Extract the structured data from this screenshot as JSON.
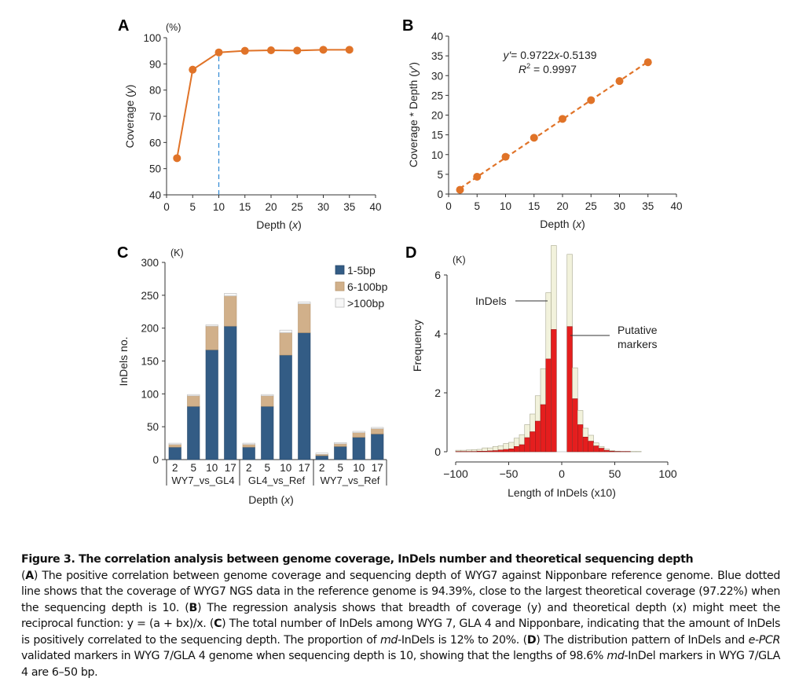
{
  "figure": {
    "caption_title": "Figure 3.  The correlation analysis between genome coverage, InDels number and theoretical sequencing depth",
    "caption_segments": [
      {
        "t": "(",
        "b": false,
        "i": false
      },
      {
        "t": "A",
        "b": true,
        "i": false
      },
      {
        "t": ") The positive correlation between genome coverage and sequencing depth of WYG7 against Nipponbare reference genome. Blue dotted line shows that the coverage of WYG7 NGS data in the reference genome is 94.39%, close to the largest theoretical coverage (97.22%) when the sequencing depth is 10. (",
        "b": false,
        "i": false
      },
      {
        "t": "B",
        "b": true,
        "i": false
      },
      {
        "t": ") The regression analysis shows that breadth of coverage (y) and theoretical depth (x) might meet the reciprocal function: y = (a + bx)/x. (",
        "b": false,
        "i": false
      },
      {
        "t": "C",
        "b": true,
        "i": false
      },
      {
        "t": ") The total number of InDels among WYG 7, GLA 4 and Nipponbare, indicating that the amount of InDels is positively correlated to the sequencing depth. The proportion of ",
        "b": false,
        "i": false
      },
      {
        "t": "md",
        "b": false,
        "i": true
      },
      {
        "t": "-InDels is 12% to 20%. (",
        "b": false,
        "i": false
      },
      {
        "t": "D",
        "b": true,
        "i": false
      },
      {
        "t": ") The distribution pattern of InDels and ",
        "b": false,
        "i": false
      },
      {
        "t": "e-PCR",
        "b": false,
        "i": true
      },
      {
        "t": " validated markers in WYG 7/GLA 4 genome when sequencing depth is 10, showing that the lengths of 98.6% ",
        "b": false,
        "i": false
      },
      {
        "t": "md",
        "b": false,
        "i": true
      },
      {
        "t": "-InDel markers in WYG 7/GLA 4 are 6–50 bp.",
        "b": false,
        "i": false
      }
    ]
  },
  "colors": {
    "orange": "#e07328",
    "blue_dashed": "#3a8fd6",
    "navy": "#335c85",
    "tan": "#d1b08a",
    "white_bar": "#f7f7f7",
    "red": "#e51e1e",
    "cream": "#f2f2dc"
  },
  "chart_data": [
    {
      "panel": "A",
      "type": "line",
      "title": "",
      "xlabel": "Depth (x)",
      "ylabel": "Coverage (y)",
      "y_unit": "(%)",
      "xlim": [
        0,
        40
      ],
      "ylim": [
        40,
        100
      ],
      "xticks": [
        0,
        5,
        10,
        15,
        20,
        25,
        30,
        35,
        40
      ],
      "yticks": [
        40,
        50,
        60,
        70,
        80,
        90,
        100
      ],
      "grid": false,
      "x": [
        2,
        5,
        10,
        15,
        20,
        25,
        30,
        35
      ],
      "series": [
        {
          "name": "Coverage",
          "values": [
            54.0,
            87.8,
            94.39,
            95.0,
            95.2,
            95.1,
            95.4,
            95.4
          ]
        }
      ],
      "annotations": [
        {
          "type": "vertical-dashed-line",
          "x": 10,
          "y_to": 94.39
        }
      ]
    },
    {
      "panel": "B",
      "type": "scatter",
      "title": "",
      "xlabel": "Depth (x)",
      "ylabel": "Coverage * Depth (y')",
      "xlim": [
        0,
        40
      ],
      "ylim": [
        0,
        40
      ],
      "xticks": [
        0,
        5,
        10,
        15,
        20,
        25,
        30,
        35,
        40
      ],
      "yticks": [
        0,
        5,
        10,
        15,
        20,
        25,
        30,
        35,
        40
      ],
      "grid": false,
      "x": [
        2,
        5,
        10,
        15,
        20,
        25,
        30,
        35
      ],
      "series": [
        {
          "name": "Coverage*Depth",
          "values": [
            1.08,
            4.39,
            9.44,
            14.25,
            19.04,
            23.78,
            28.62,
            33.39
          ]
        }
      ],
      "trendline": {
        "slope": 0.9722,
        "intercept": -0.5139,
        "style": "dashed"
      },
      "annotations": [
        {
          "text_pre": "y'",
          "text_post": "= 0.9722",
          "var": "x",
          "text_end": "-0.5139"
        },
        {
          "text_pre": "R",
          "sup": "2",
          "text_post": " = 0.9997"
        }
      ]
    },
    {
      "panel": "C",
      "type": "bar",
      "stacked": true,
      "title": "",
      "xlabel": "Depth (x)",
      "ylabel": "InDels no.",
      "y_unit": "(K)",
      "ylim": [
        0,
        300
      ],
      "yticks": [
        0,
        50,
        100,
        150,
        200,
        250,
        300
      ],
      "grid": false,
      "legend_position": "top-right",
      "groups": [
        "WY7_vs_GL4",
        "GL4_vs_Ref",
        "WY7_vs_Ref"
      ],
      "categories": [
        "2",
        "5",
        "10",
        "17",
        "2",
        "5",
        "10",
        "17",
        "2",
        "5",
        "10",
        "17"
      ],
      "series": [
        {
          "name": "1-5bp",
          "values": [
            19,
            81,
            167,
            203,
            19,
            81,
            159,
            193,
            6,
            20,
            34,
            39
          ]
        },
        {
          "name": "6-100bp",
          "values": [
            4,
            16,
            36,
            46,
            4,
            16,
            34,
            44,
            2,
            4,
            7,
            8
          ]
        },
        {
          "name": ">100bp",
          "values": [
            2,
            2,
            2,
            4,
            2,
            2,
            4,
            3,
            2,
            2,
            2,
            2
          ]
        }
      ]
    },
    {
      "panel": "D",
      "type": "bar",
      "overlay": true,
      "title": "",
      "xlabel": "Length of InDels (x10)",
      "ylabel": "Frequency",
      "y_unit": "(K)",
      "xlim": [
        -100,
        100
      ],
      "ylim": [
        0,
        6.8
      ],
      "xticks": [
        -100,
        -50,
        0,
        50,
        100
      ],
      "yticks": [
        0,
        2,
        4,
        6
      ],
      "grid": false,
      "bin_width": 5,
      "x_bin_starts": [
        -100,
        -95,
        -90,
        -85,
        -80,
        -75,
        -70,
        -65,
        -60,
        -55,
        -50,
        -45,
        -40,
        -35,
        -30,
        -25,
        -20,
        -15,
        -10,
        5,
        10,
        15,
        20,
        25,
        30,
        35,
        40,
        45,
        50,
        55,
        60,
        65,
        70
      ],
      "series": [
        {
          "name": "InDels",
          "values": [
            0.05,
            0.05,
            0.06,
            0.07,
            0.08,
            0.13,
            0.13,
            0.18,
            0.2,
            0.28,
            0.32,
            0.46,
            0.58,
            0.92,
            1.28,
            1.9,
            2.82,
            5.4,
            7.0,
            6.7,
            2.85,
            1.4,
            0.8,
            0.56,
            0.3,
            0.18,
            0.09,
            0.04,
            0.02,
            0.01,
            0.01,
            0.01,
            0.01
          ]
        },
        {
          "name": "Putative markers",
          "values": [
            0.01,
            0.01,
            0.01,
            0.01,
            0.02,
            0.02,
            0.03,
            0.04,
            0.06,
            0.08,
            0.1,
            0.18,
            0.24,
            0.48,
            0.68,
            1.04,
            1.6,
            3.15,
            4.15,
            4.25,
            1.8,
            0.92,
            0.5,
            0.36,
            0.2,
            0.12,
            0.05,
            0.02,
            0.01,
            0.01,
            0.01,
            0.0,
            0.0
          ]
        }
      ],
      "annotations": [
        {
          "label": "InDels"
        },
        {
          "label_lines": [
            "Putative",
            "markers"
          ]
        }
      ]
    }
  ],
  "panels": {
    "A": {
      "letter": "A"
    },
    "B": {
      "letter": "B"
    },
    "C": {
      "letter": "C"
    },
    "D": {
      "letter": "D"
    }
  }
}
